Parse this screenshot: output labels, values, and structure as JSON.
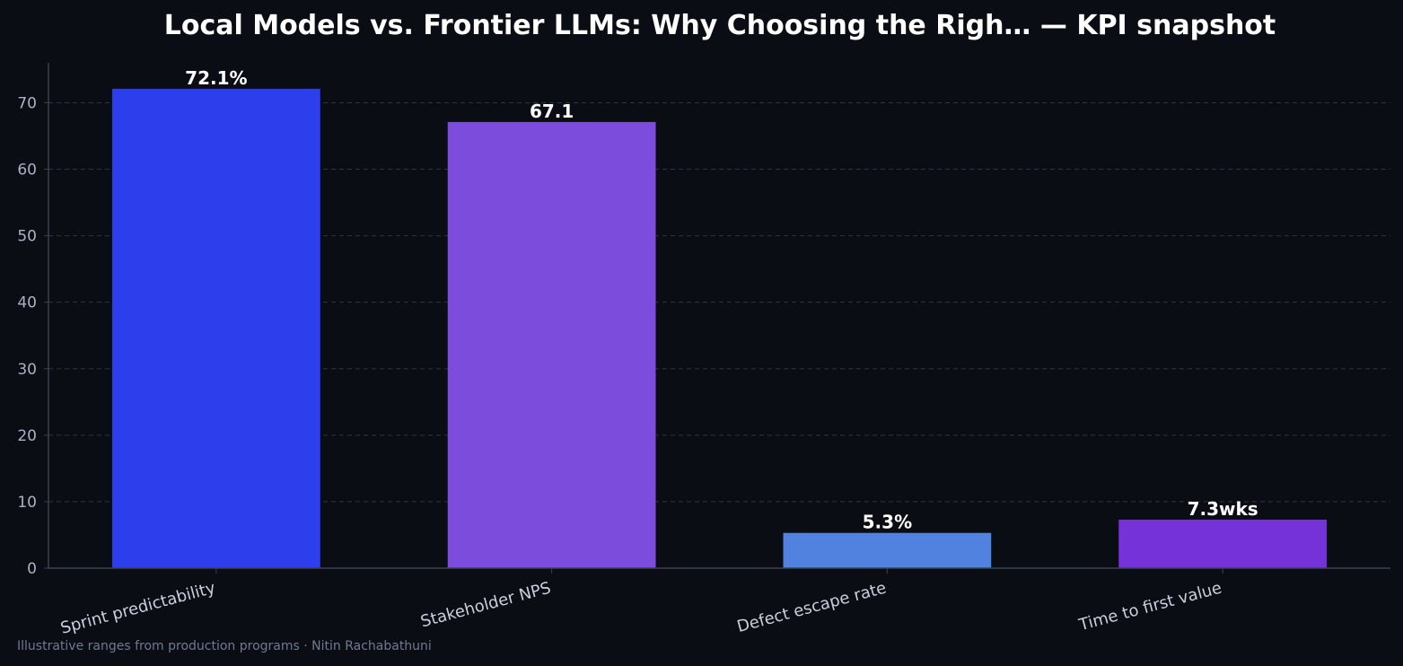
{
  "chart_data": {
    "type": "bar",
    "title": "Local Models vs. Frontier LLMs: Why Choosing the Righ… — KPI snapshot",
    "xlabel": "",
    "ylabel": "",
    "categories": [
      "Sprint predictability",
      "Stakeholder NPS",
      "Defect escape rate",
      "Time to first value"
    ],
    "values": [
      72.1,
      67.1,
      5.3,
      7.3
    ],
    "value_labels": [
      "72.1%",
      "67.1",
      "5.3%",
      "7.3wks"
    ],
    "bar_colors": [
      "#2d3fec",
      "#7c4ddd",
      "#5282e0",
      "#7532d9"
    ],
    "ylim": [
      0,
      76
    ],
    "yticks": [
      0,
      10,
      20,
      30,
      40,
      50,
      60,
      70
    ],
    "grid": true,
    "legend": "none"
  },
  "footer": "Illustrative ranges from production programs · Nitin Rachabathuni",
  "colors": {
    "background": "#0b0d14",
    "title": "#ffffff",
    "tick_label": "#aab2c4",
    "category_label": "#c9cfdc",
    "footer": "#6f7a90",
    "grid": "#2e3447",
    "axis": "#3a4152"
  }
}
